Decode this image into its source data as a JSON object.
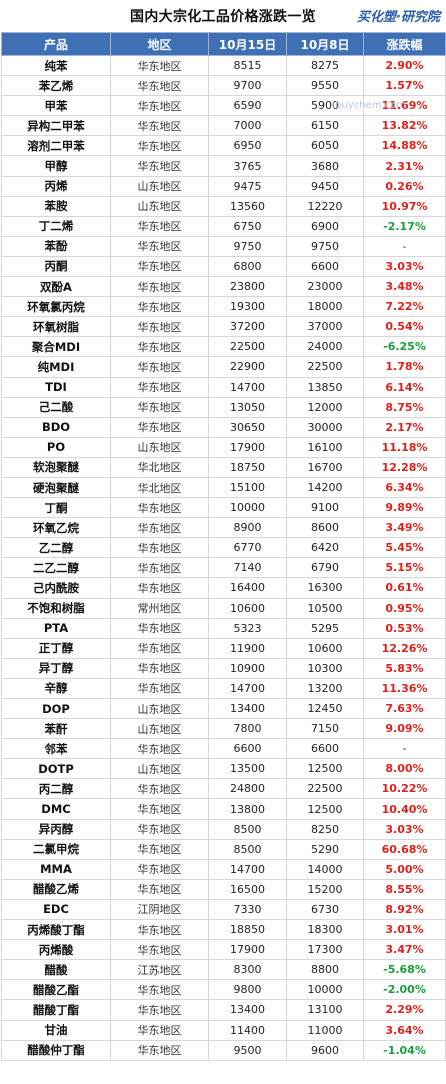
{
  "title": "国内大宗化工品价格涨跌一览",
  "brand": "买化塑·研究院",
  "watermark": "ibuychem.com",
  "columns": [
    "产品",
    "地区",
    "10月15日",
    "10月8日",
    "涨跌幅"
  ],
  "rows": [
    {
      "name": "纯苯",
      "region": "华东地区",
      "oct15": "8515",
      "oct8": "8275",
      "change": "2.90%",
      "trend": "up"
    },
    {
      "name": "苯乙烯",
      "region": "华东地区",
      "oct15": "9700",
      "oct8": "9550",
      "change": "1.57%",
      "trend": "up"
    },
    {
      "name": "甲苯",
      "region": "华东地区",
      "oct15": "6590",
      "oct8": "5900",
      "change": "11.69%",
      "trend": "up"
    },
    {
      "name": "异构二甲苯",
      "region": "华东地区",
      "oct15": "7000",
      "oct8": "6150",
      "change": "13.82%",
      "trend": "up"
    },
    {
      "name": "溶剂二甲苯",
      "region": "华东地区",
      "oct15": "6950",
      "oct8": "6050",
      "change": "14.88%",
      "trend": "up"
    },
    {
      "name": "甲醇",
      "region": "华东地区",
      "oct15": "3765",
      "oct8": "3680",
      "change": "2.31%",
      "trend": "up"
    },
    {
      "name": "丙烯",
      "region": "山东地区",
      "oct15": "9475",
      "oct8": "9450",
      "change": "0.26%",
      "trend": "up"
    },
    {
      "name": "苯胺",
      "region": "山东地区",
      "oct15": "13560",
      "oct8": "12220",
      "change": "10.97%",
      "trend": "up"
    },
    {
      "name": "丁二烯",
      "region": "华东地区",
      "oct15": "6750",
      "oct8": "6900",
      "change": "-2.17%",
      "trend": "down"
    },
    {
      "name": "苯酚",
      "region": "华东地区",
      "oct15": "9750",
      "oct8": "9750",
      "change": "-",
      "trend": "flat"
    },
    {
      "name": "丙酮",
      "region": "华东地区",
      "oct15": "6800",
      "oct8": "6600",
      "change": "3.03%",
      "trend": "up"
    },
    {
      "name": "双酚A",
      "region": "华东地区",
      "oct15": "23800",
      "oct8": "23000",
      "change": "3.48%",
      "trend": "up"
    },
    {
      "name": "环氧氯丙烷",
      "region": "华东地区",
      "oct15": "19300",
      "oct8": "18000",
      "change": "7.22%",
      "trend": "up"
    },
    {
      "name": "环氧树脂",
      "region": "华东地区",
      "oct15": "37200",
      "oct8": "37000",
      "change": "0.54%",
      "trend": "up"
    },
    {
      "name": "聚合MDI",
      "region": "华东地区",
      "oct15": "22500",
      "oct8": "24000",
      "change": "-6.25%",
      "trend": "down"
    },
    {
      "name": "纯MDI",
      "region": "华东地区",
      "oct15": "22900",
      "oct8": "22500",
      "change": "1.78%",
      "trend": "up"
    },
    {
      "name": "TDI",
      "region": "华东地区",
      "oct15": "14700",
      "oct8": "13850",
      "change": "6.14%",
      "trend": "up"
    },
    {
      "name": "己二酸",
      "region": "华东地区",
      "oct15": "13050",
      "oct8": "12000",
      "change": "8.75%",
      "trend": "up"
    },
    {
      "name": "BDO",
      "region": "华东地区",
      "oct15": "30650",
      "oct8": "30000",
      "change": "2.17%",
      "trend": "up"
    },
    {
      "name": "PO",
      "region": "山东地区",
      "oct15": "17900",
      "oct8": "16100",
      "change": "11.18%",
      "trend": "up"
    },
    {
      "name": "软泡聚醚",
      "region": "华北地区",
      "oct15": "18750",
      "oct8": "16700",
      "change": "12.28%",
      "trend": "up"
    },
    {
      "name": "硬泡聚醚",
      "region": "华北地区",
      "oct15": "15100",
      "oct8": "14200",
      "change": "6.34%",
      "trend": "up"
    },
    {
      "name": "丁酮",
      "region": "华东地区",
      "oct15": "10000",
      "oct8": "9100",
      "change": "9.89%",
      "trend": "up"
    },
    {
      "name": "环氧乙烷",
      "region": "华东地区",
      "oct15": "8900",
      "oct8": "8600",
      "change": "3.49%",
      "trend": "up"
    },
    {
      "name": "乙二醇",
      "region": "华东地区",
      "oct15": "6770",
      "oct8": "6420",
      "change": "5.45%",
      "trend": "up"
    },
    {
      "name": "二乙二醇",
      "region": "华东地区",
      "oct15": "7140",
      "oct8": "6790",
      "change": "5.15%",
      "trend": "up"
    },
    {
      "name": "己内酰胺",
      "region": "华东地区",
      "oct15": "16400",
      "oct8": "16300",
      "change": "0.61%",
      "trend": "up"
    },
    {
      "name": "不饱和树脂",
      "region": "常州地区",
      "oct15": "10600",
      "oct8": "10500",
      "change": "0.95%",
      "trend": "up"
    },
    {
      "name": "PTA",
      "region": "华东地区",
      "oct15": "5323",
      "oct8": "5295",
      "change": "0.53%",
      "trend": "up"
    },
    {
      "name": "正丁醇",
      "region": "华东地区",
      "oct15": "11900",
      "oct8": "10600",
      "change": "12.26%",
      "trend": "up"
    },
    {
      "name": "异丁醇",
      "region": "华东地区",
      "oct15": "10900",
      "oct8": "10300",
      "change": "5.83%",
      "trend": "up"
    },
    {
      "name": "辛醇",
      "region": "华东地区",
      "oct15": "14700",
      "oct8": "13200",
      "change": "11.36%",
      "trend": "up"
    },
    {
      "name": "DOP",
      "region": "山东地区",
      "oct15": "13400",
      "oct8": "12450",
      "change": "7.63%",
      "trend": "up"
    },
    {
      "name": "苯酐",
      "region": "山东地区",
      "oct15": "7800",
      "oct8": "7150",
      "change": "9.09%",
      "trend": "up"
    },
    {
      "name": "邻苯",
      "region": "华东地区",
      "oct15": "6600",
      "oct8": "6600",
      "change": "-",
      "trend": "flat"
    },
    {
      "name": "DOTP",
      "region": "山东地区",
      "oct15": "13500",
      "oct8": "12500",
      "change": "8.00%",
      "trend": "up"
    },
    {
      "name": "丙二醇",
      "region": "华东地区",
      "oct15": "24800",
      "oct8": "22500",
      "change": "10.22%",
      "trend": "up"
    },
    {
      "name": "DMC",
      "region": "华东地区",
      "oct15": "13800",
      "oct8": "12500",
      "change": "10.40%",
      "trend": "up"
    },
    {
      "name": "异丙醇",
      "region": "华东地区",
      "oct15": "8500",
      "oct8": "8250",
      "change": "3.03%",
      "trend": "up"
    },
    {
      "name": "二氯甲烷",
      "region": "华东地区",
      "oct15": "8500",
      "oct8": "5290",
      "change": "60.68%",
      "trend": "up"
    },
    {
      "name": "MMA",
      "region": "华东地区",
      "oct15": "14700",
      "oct8": "14000",
      "change": "5.00%",
      "trend": "up"
    },
    {
      "name": "醋酸乙烯",
      "region": "华东地区",
      "oct15": "16500",
      "oct8": "15200",
      "change": "8.55%",
      "trend": "up"
    },
    {
      "name": "EDC",
      "region": "江阴地区",
      "oct15": "7330",
      "oct8": "6730",
      "change": "8.92%",
      "trend": "up"
    },
    {
      "name": "丙烯酸丁酯",
      "region": "华东地区",
      "oct15": "18850",
      "oct8": "18300",
      "change": "3.01%",
      "trend": "up"
    },
    {
      "name": "丙烯酸",
      "region": "华东地区",
      "oct15": "17900",
      "oct8": "17300",
      "change": "3.47%",
      "trend": "up"
    },
    {
      "name": "醋酸",
      "region": "江苏地区",
      "oct15": "8300",
      "oct8": "8800",
      "change": "-5.68%",
      "trend": "down"
    },
    {
      "name": "醋酸乙酯",
      "region": "华东地区",
      "oct15": "9800",
      "oct8": "10000",
      "change": "-2.00%",
      "trend": "down"
    },
    {
      "name": "醋酸丁酯",
      "region": "华东地区",
      "oct15": "13400",
      "oct8": "13100",
      "change": "2.29%",
      "trend": "up"
    },
    {
      "name": "甘油",
      "region": "华东地区",
      "oct15": "11400",
      "oct8": "11000",
      "change": "3.64%",
      "trend": "up"
    },
    {
      "name": "醋酸仲丁酯",
      "region": "华东地区",
      "oct15": "9500",
      "oct8": "9600",
      "change": "-1.04%",
      "trend": "down"
    }
  ]
}
